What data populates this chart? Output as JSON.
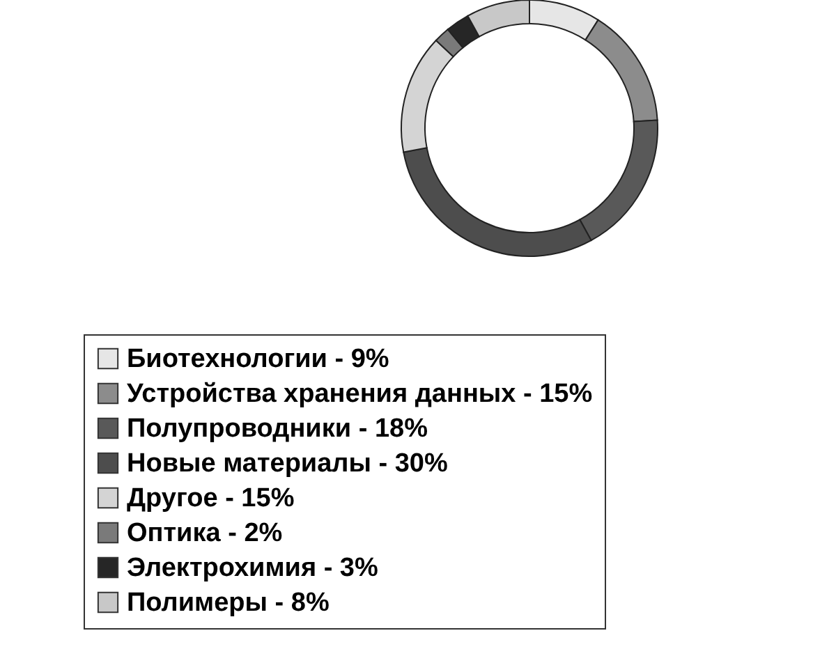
{
  "chart_data": {
    "type": "donut",
    "categories": [
      "Биотехнологии - 9%",
      "Устройства хранения данных - 15%",
      "Полупроводники - 18%",
      "Новые материалы - 30%",
      "Другое - 15%",
      "Оптика - 2%",
      "Электрохимия - 3%",
      "Полимеры - 8%"
    ],
    "values": [
      9,
      15,
      18,
      30,
      15,
      2,
      3,
      8
    ],
    "colors": [
      "#e6e6e6",
      "#8c8c8c",
      "#595959",
      "#4d4d4d",
      "#d4d4d4",
      "#7a7a7a",
      "#262626",
      "#c8c8c8"
    ],
    "legend": "bottom"
  }
}
